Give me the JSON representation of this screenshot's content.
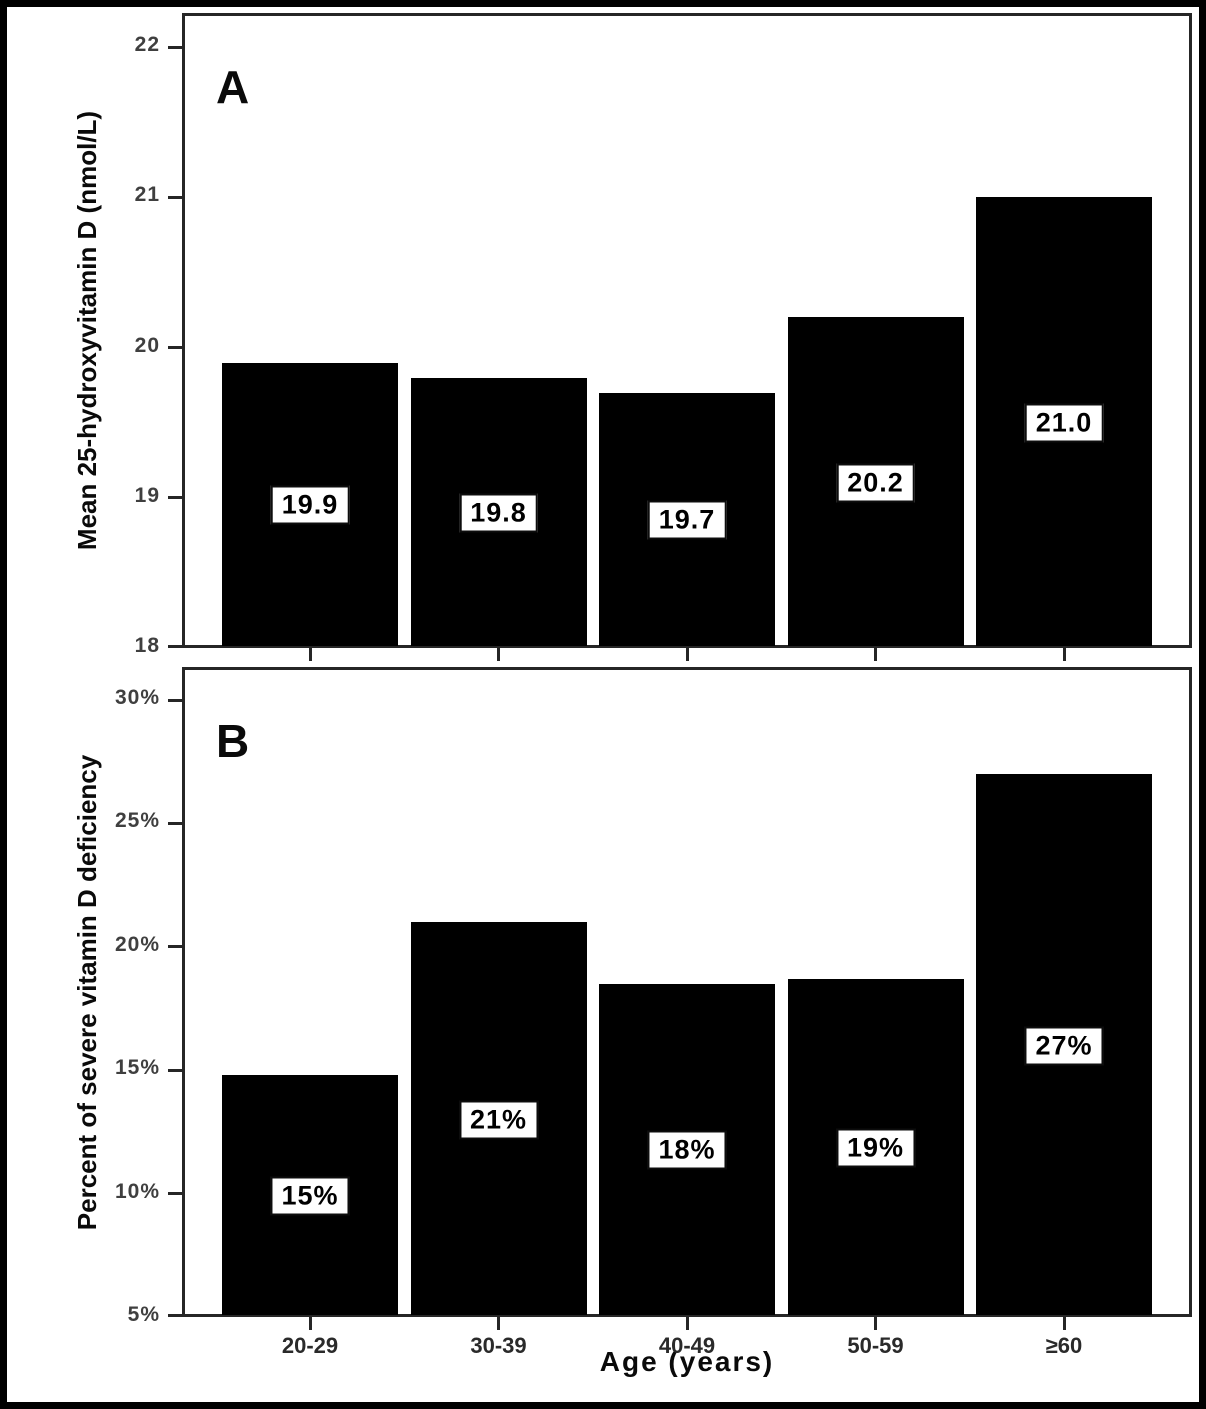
{
  "figure": {
    "bar_color": "#000000",
    "label_box_background": "#ffffff",
    "label_box_border": "#0d0d0d"
  },
  "chart_data": [
    {
      "type": "bar",
      "panel": "A",
      "categories": [
        "20-29",
        "30-39",
        "40-49",
        "50-59",
        "≥60"
      ],
      "values": [
        19.9,
        19.8,
        19.7,
        20.2,
        21.0
      ],
      "bar_labels": [
        "19.9",
        "19.8",
        "19.7",
        "20.2",
        "21.0"
      ],
      "title": "",
      "xlabel": "",
      "ylabel": "Mean 25-hydroxyvitamin D (nmol/L)",
      "ylim": [
        18,
        22
      ],
      "yticks": [
        18,
        19,
        20,
        21,
        22
      ],
      "ytick_labels": [
        "18",
        "19",
        "20",
        "21",
        "22"
      ],
      "grid": "off",
      "legend": "none",
      "show_x_tick_labels": false
    },
    {
      "type": "bar",
      "panel": "B",
      "categories": [
        "20-29",
        "30-39",
        "40-49",
        "50-59",
        "≥60"
      ],
      "values": [
        15,
        21,
        18,
        19,
        27
      ],
      "plot_values": [
        14.8,
        21.0,
        18.5,
        18.7,
        27.0
      ],
      "bar_labels": [
        "15%",
        "21%",
        "18%",
        "19%",
        "27%"
      ],
      "title": "",
      "xlabel": "Age (years)",
      "ylabel": "Percent of severe vitamin D deficiency",
      "ylim": [
        5,
        30
      ],
      "yticks": [
        5,
        10,
        15,
        20,
        25,
        30
      ],
      "ytick_labels": [
        "5%",
        "10%",
        "15%",
        "20%",
        "25%",
        "30%"
      ],
      "grid": "off",
      "legend": "none",
      "show_x_tick_labels": true
    }
  ]
}
